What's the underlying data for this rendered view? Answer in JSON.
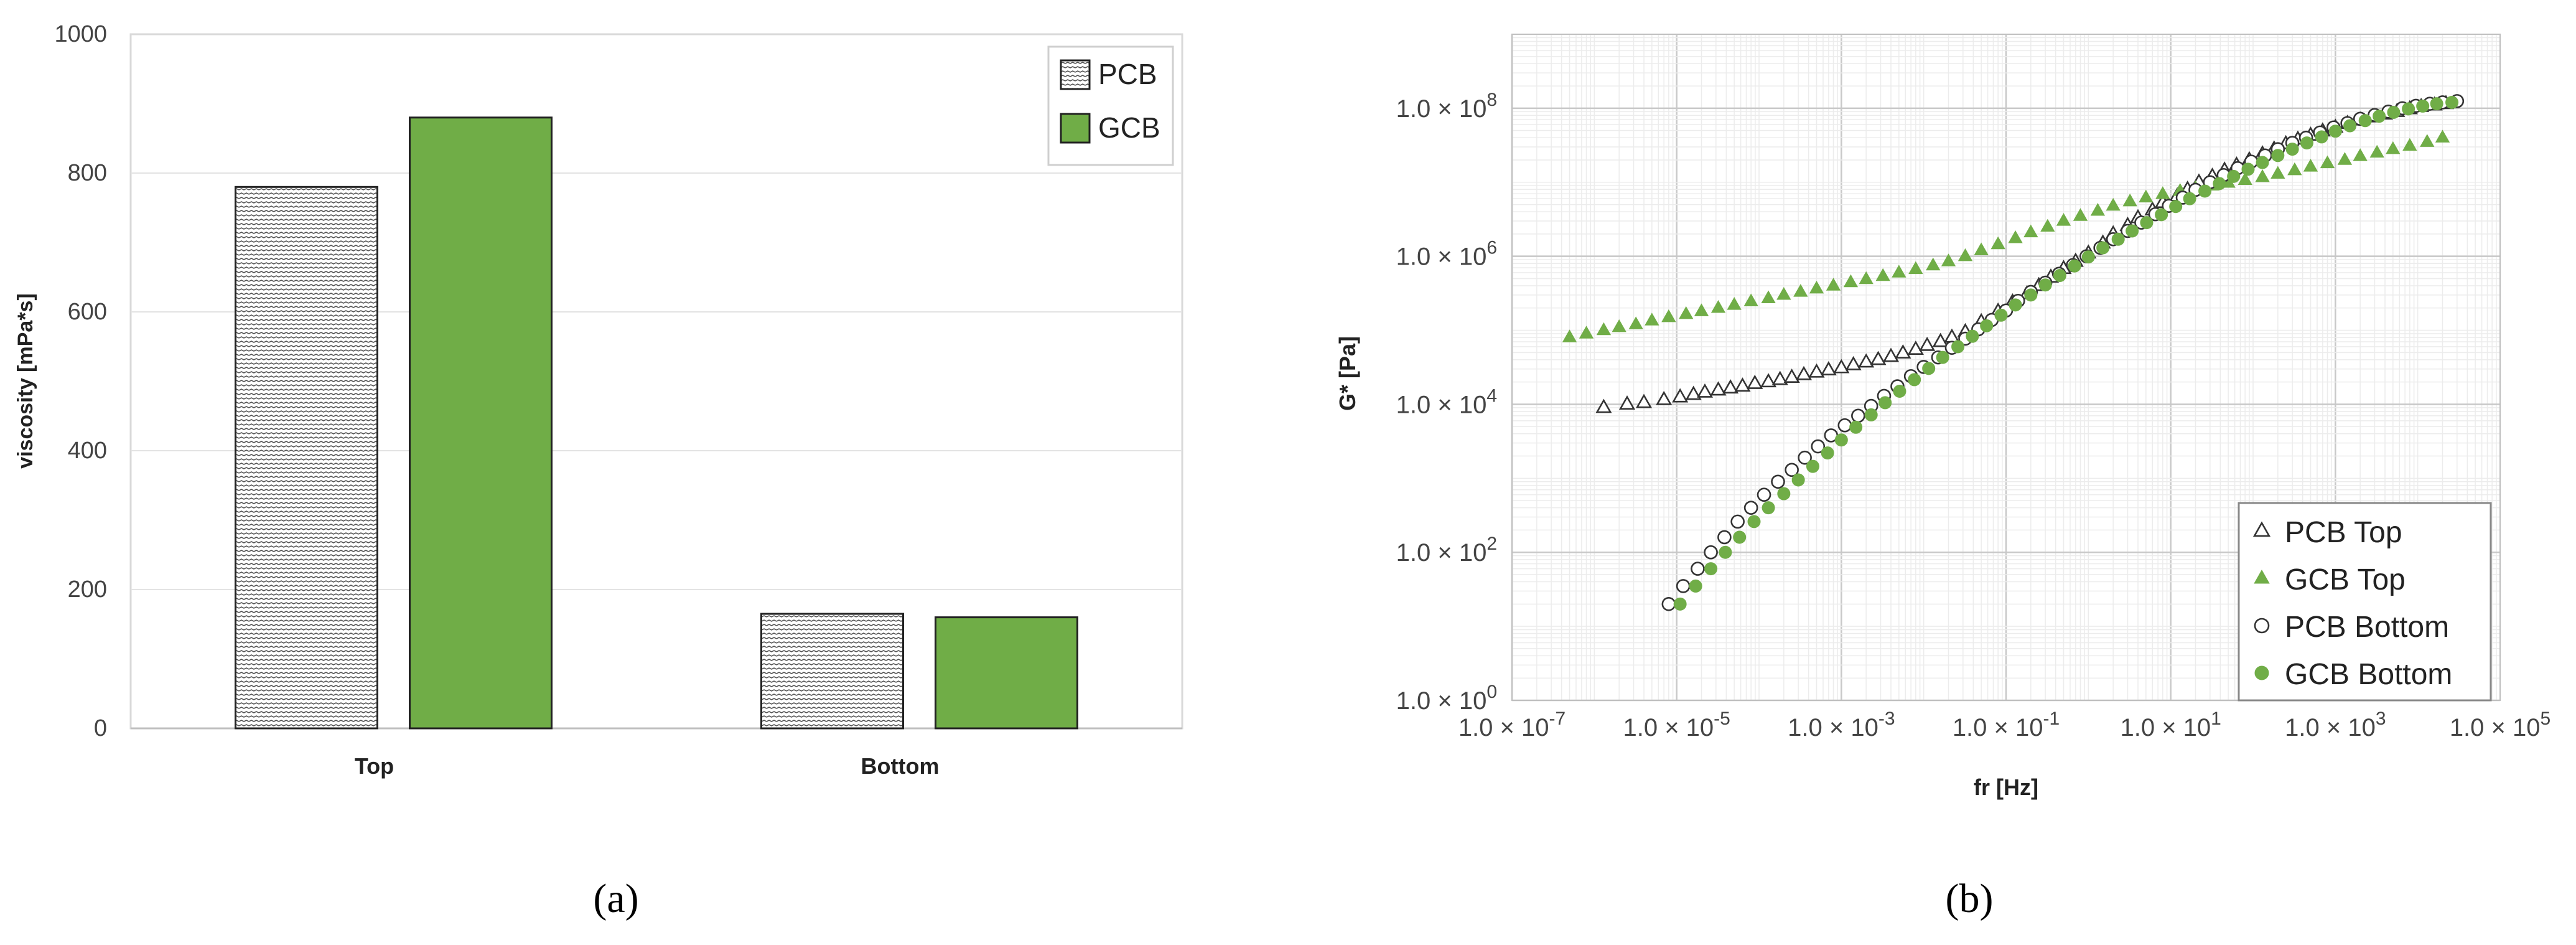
{
  "chart_data": [
    {
      "type": "bar",
      "panel_label": "(a)",
      "ylabel": "viscosity [mPa*s]",
      "xlabel": "",
      "ylim": [
        0,
        1000
      ],
      "yticks": [
        "0",
        "200",
        "400",
        "600",
        "800",
        "1000"
      ],
      "categories": [
        "Top",
        "Bottom"
      ],
      "series": [
        {
          "name": "PCB",
          "values": [
            780,
            165
          ],
          "color": "#ffffff",
          "pattern": "hatched"
        },
        {
          "name": "GCB",
          "values": [
            880,
            160
          ],
          "color": "#70ad47"
        }
      ],
      "grid": "horizontal",
      "legend": "top-right"
    },
    {
      "type": "scatter",
      "panel_label": "(b)",
      "xlabel": "fr [Hz]",
      "ylabel": "G* [Pa]",
      "xscale": "log",
      "yscale": "log",
      "xlim": [
        1e-07,
        100000.0
      ],
      "ylim": [
        1,
        1000000000.0
      ],
      "xticks": [
        {
          "mant": "1.0 × 10",
          "exp": "-7"
        },
        {
          "mant": "1.0 × 10",
          "exp": "-5"
        },
        {
          "mant": "1.0 × 10",
          "exp": "-3"
        },
        {
          "mant": "1.0 × 10",
          "exp": "-1"
        },
        {
          "mant": "1.0 × 10",
          "exp": "1"
        },
        {
          "mant": "1.0 × 10",
          "exp": "3"
        },
        {
          "mant": "1.0 × 10",
          "exp": "5"
        }
      ],
      "yticks": [
        {
          "mant": "1.0 × 10",
          "exp": "0"
        },
        {
          "mant": "1.0 × 10",
          "exp": "2"
        },
        {
          "mant": "1.0 × 10",
          "exp": "4"
        },
        {
          "mant": "1.0 × 10",
          "exp": "6"
        },
        {
          "mant": "1.0 × 10",
          "exp": "8"
        }
      ],
      "grid": "both",
      "legend": "bottom-right",
      "series": [
        {
          "name": "PCB Top",
          "marker": "open-triangle",
          "color": "#333333",
          "x": [
            1.3e-06,
            2.5e-06,
            4e-06,
            7e-06,
            1.1e-05,
            1.6e-05,
            2.2e-05,
            3.2e-05,
            4.5e-05,
            6.3e-05,
            8.9e-05,
            0.00013,
            0.00018,
            0.00025,
            0.00035,
            0.0005,
            0.0007,
            0.001,
            0.0014,
            0.002,
            0.0028,
            0.004,
            0.0056,
            0.008,
            0.011,
            0.016,
            0.022,
            0.032,
            0.05,
            0.08,
            0.12,
            0.18,
            0.25,
            0.35,
            0.5,
            0.7,
            1,
            1.5,
            2,
            3,
            4,
            6,
            8,
            12,
            16,
            22,
            32,
            45,
            63,
            90,
            130,
            180,
            250,
            350,
            500,
            700,
            1000,
            1400,
            2000,
            2800,
            4000,
            5600,
            8000,
            11000,
            16000,
            22000
          ],
          "y": [
            9000.0,
            10000.0,
            10500.0,
            11500.0,
            12500.0,
            13500.0,
            14500.0,
            15500.0,
            16500.0,
            17500.0,
            19000.0,
            20000.0,
            21500.0,
            23000.0,
            25000.0,
            27000.0,
            29000.0,
            31000.0,
            34000.0,
            37000.0,
            40000.0,
            44000.0,
            49000.0,
            55000.0,
            62000.0,
            70000.0,
            80000.0,
            95000.0,
            130000.0,
            180000.0,
            240000.0,
            310000.0,
            400000.0,
            520000.0,
            680000.0,
            850000.0,
            1100000.0,
            1500000.0,
            2000000.0,
            2600000.0,
            3300000.0,
            4200000.0,
            5300000.0,
            6500000.0,
            8000000.0,
            10000000.0,
            12000000.0,
            14500000.0,
            17000000.0,
            20000000.0,
            24000000.0,
            28000000.0,
            33000000.0,
            38000000.0,
            43000000.0,
            49000000.0,
            55000000.0,
            62000000.0,
            69000000.0,
            76000000.0,
            83000000.0,
            90000000.0,
            98000000.0,
            105000000.0,
            110000000.0,
            115000000.0
          ]
        },
        {
          "name": "GCB Top",
          "marker": "filled-triangle",
          "color": "#70ad47",
          "x": [
            5e-07,
            8e-07,
            1.3e-06,
            2e-06,
            3.2e-06,
            5e-06,
            8e-06,
            1.3e-05,
            2e-05,
            3.2e-05,
            5e-05,
            8e-05,
            0.00013,
            0.0002,
            0.00032,
            0.0005,
            0.0008,
            0.0013,
            0.002,
            0.0032,
            0.005,
            0.008,
            0.013,
            0.02,
            0.032,
            0.05,
            0.08,
            0.13,
            0.2,
            0.32,
            0.5,
            0.8,
            1.3,
            2,
            3.2,
            5,
            8,
            13,
            20,
            32,
            50,
            80,
            130,
            200,
            320,
            500,
            800,
            1300,
            2000,
            3200,
            5000,
            8000,
            13000,
            20000
          ],
          "y": [
            80000.0,
            90000.0,
            100000.0,
            110000.0,
            120000.0,
            135000.0,
            150000.0,
            165000.0,
            180000.0,
            200000.0,
            220000.0,
            245000.0,
            270000.0,
            300000.0,
            330000.0,
            365000.0,
            400000.0,
            445000.0,
            490000.0,
            540000.0,
            600000.0,
            670000.0,
            750000.0,
            850000.0,
            1000000.0,
            1200000.0,
            1450000.0,
            1750000.0,
            2100000.0,
            2500000.0,
            3000000.0,
            3500000.0,
            4100000.0,
            4800000.0,
            5500000.0,
            6200000.0,
            6900000.0,
            7600000.0,
            8300000.0,
            9000000.0,
            9800000.0,
            10700000.0,
            11700000.0,
            13000000.0,
            14500000.0,
            16200000.0,
            18000000.0,
            20000000.0,
            22500000.0,
            25000000.0,
            28000000.0,
            31000000.0,
            35000000.0,
            40000000.0
          ]
        },
        {
          "name": "PCB Bottom",
          "marker": "open-circle",
          "color": "#333333",
          "x": [
            8e-06,
            1.2e-05,
            1.8e-05,
            2.6e-05,
            3.8e-05,
            5.5e-05,
            8e-05,
            0.000115,
            0.00017,
            0.00025,
            0.00036,
            0.00052,
            0.00075,
            0.0011,
            0.0016,
            0.0023,
            0.0033,
            0.0048,
            0.007,
            0.01,
            0.015,
            0.022,
            0.032,
            0.046,
            0.067,
            0.1,
            0.14,
            0.2,
            0.3,
            0.44,
            0.65,
            0.95,
            1.4,
            2,
            3,
            4.4,
            6.5,
            9.5,
            14,
            20,
            30,
            44,
            65,
            95,
            140,
            200,
            300,
            440,
            650,
            950,
            1400,
            2000,
            3000,
            4400,
            6500,
            9500,
            14000,
            20000,
            30000
          ],
          "y": [
            20,
            35,
            60,
            100,
            160,
            260,
            400,
            600,
            900,
            1300,
            1900,
            2700,
            3800,
            5200,
            7000,
            9500,
            13000.0,
            17500.0,
            24000.0,
            32000.0,
            43000.0,
            58000.0,
            77000.0,
            103000.0,
            138000.0,
            185000.0,
            250000.0,
            330000.0,
            440000.0,
            580000.0,
            760000.0,
            1000000.0,
            1300000.0,
            1700000.0,
            2200000.0,
            2850000.0,
            3700000.0,
            4800000.0,
            6200000.0,
            7900000.0,
            10000000.0,
            12500000.0,
            15500000.0,
            19000000.0,
            23000000.0,
            28000000.0,
            34000000.0,
            40000000.0,
            47000000.0,
            55000000.0,
            63000000.0,
            72000000.0,
            81000000.0,
            90000000.0,
            100000000.0,
            108000000.0,
            115000000.0,
            120000000.0,
            125000000.0
          ]
        },
        {
          "name": "GCB Bottom",
          "marker": "filled-circle",
          "color": "#70ad47",
          "x": [
            1.1e-05,
            1.7e-05,
            2.6e-05,
            3.9e-05,
            5.8e-05,
            8.7e-05,
            0.00013,
            0.0002,
            0.0003,
            0.00045,
            0.00068,
            0.001,
            0.0015,
            0.0023,
            0.0034,
            0.0051,
            0.0077,
            0.0115,
            0.017,
            0.026,
            0.039,
            0.058,
            0.087,
            0.13,
            0.2,
            0.3,
            0.45,
            0.68,
            1,
            1.5,
            2.3,
            3.4,
            5.1,
            7.7,
            11.5,
            17,
            26,
            39,
            58,
            87,
            130,
            200,
            300,
            450,
            680,
            1000,
            1500,
            2300,
            3400,
            5100,
            7700,
            11500,
            17000,
            26000
          ],
          "y": [
            20,
            35,
            60,
            100,
            160,
            260,
            400,
            620,
            950,
            1450,
            2200,
            3300,
            4900,
            7200,
            10500.0,
            15000.0,
            21500.0,
            30500.0,
            43000.0,
            60000.0,
            83000.0,
            115000.0,
            160000.0,
            220000.0,
            300000.0,
            410000.0,
            550000.0,
            740000.0,
            980000.0,
            1300000.0,
            1700000.0,
            2200000.0,
            2850000.0,
            3650000.0,
            4700000.0,
            6000000.0,
            7600000.0,
            9600000.0,
            12000000.0,
            15000000.0,
            18500000.0,
            23000000.0,
            28000000.0,
            34000000.0,
            41000000.0,
            49000000.0,
            58000000.0,
            68000000.0,
            78000000.0,
            88000000.0,
            98000000.0,
            107000000.0,
            115000000.0,
            120000000.0
          ]
        }
      ]
    }
  ]
}
